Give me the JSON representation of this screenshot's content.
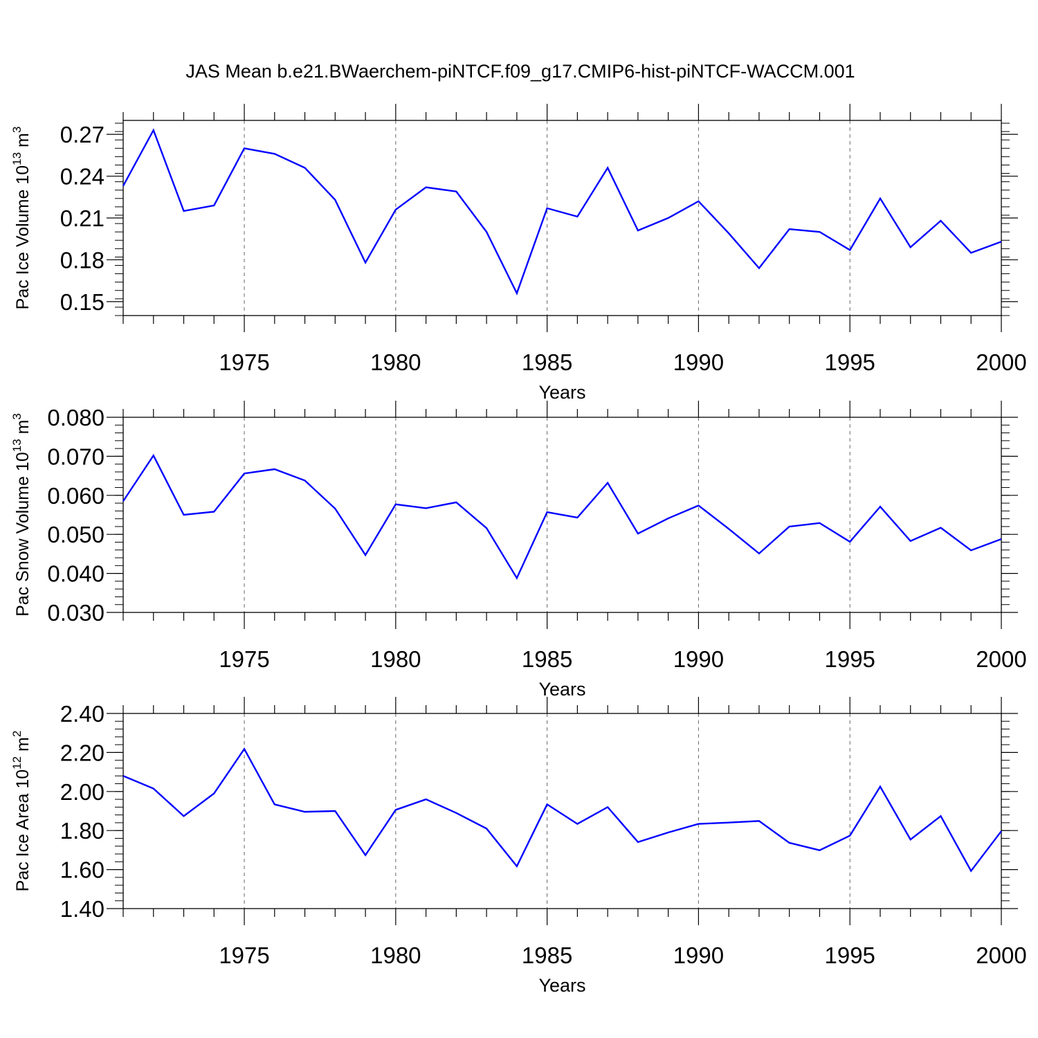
{
  "figure": {
    "title": "JAS Mean b.e21.BWaerchem-piNTCF.f09_g17.CMIP6-hist-piNTCF-WACCM.001"
  },
  "colors": {
    "line": "#0000ff",
    "axes": "#000000",
    "grid": "#666666"
  },
  "chart_data": [
    {
      "type": "line",
      "title": "",
      "xlabel": "Years",
      "ylabel": {
        "text": "Pac Ice Volume 10",
        "exp": "13",
        "unit": " m",
        "unit_exp": "3"
      },
      "xlim": [
        1971,
        2000
      ],
      "ylim": [
        0.14,
        0.28
      ],
      "xticks": [
        1975,
        1980,
        1985,
        1990,
        1995,
        2000
      ],
      "xtick_labels": [
        "1975",
        "1980",
        "1985",
        "1990",
        "1995",
        "2000"
      ],
      "yticks": [
        0.15,
        0.18,
        0.21,
        0.24,
        0.27
      ],
      "ytick_labels": [
        "0.15",
        "0.18",
        "0.21",
        "0.24",
        "0.27"
      ],
      "y_minor_step": 0.006,
      "grid": "dashed vertical lines at major x ticks",
      "x": [
        1971,
        1972,
        1973,
        1974,
        1975,
        1976,
        1977,
        1978,
        1979,
        1980,
        1981,
        1982,
        1983,
        1984,
        1985,
        1986,
        1987,
        1988,
        1989,
        1990,
        1991,
        1992,
        1993,
        1994,
        1995,
        1996,
        1997,
        1998,
        1999,
        2000
      ],
      "series": [
        {
          "values": [
            0.233,
            0.273,
            0.215,
            0.219,
            0.26,
            0.256,
            0.246,
            0.223,
            0.178,
            0.216,
            0.232,
            0.229,
            0.2,
            0.156,
            0.217,
            0.211,
            0.246,
            0.201,
            0.21,
            0.222,
            0.199,
            0.174,
            0.202,
            0.2,
            0.187,
            0.224,
            0.189,
            0.208,
            0.185,
            0.193
          ]
        }
      ]
    },
    {
      "type": "line",
      "title": "",
      "xlabel": "Years",
      "ylabel": {
        "text": "Pac Snow Volume 10",
        "exp": "13",
        "unit": " m",
        "unit_exp": "3"
      },
      "xlim": [
        1971,
        2000
      ],
      "ylim": [
        0.03,
        0.08
      ],
      "xticks": [
        1975,
        1980,
        1985,
        1990,
        1995,
        2000
      ],
      "xtick_labels": [
        "1975",
        "1980",
        "1985",
        "1990",
        "1995",
        "2000"
      ],
      "yticks": [
        0.03,
        0.04,
        0.05,
        0.06,
        0.07,
        0.08
      ],
      "ytick_labels": [
        "0.030",
        "0.040",
        "0.050",
        "0.060",
        "0.070",
        "0.080"
      ],
      "y_minor_step": 0.002,
      "grid": "dashed vertical lines at major x ticks",
      "x": [
        1971,
        1972,
        1973,
        1974,
        1975,
        1976,
        1977,
        1978,
        1979,
        1980,
        1981,
        1982,
        1983,
        1984,
        1985,
        1986,
        1987,
        1988,
        1989,
        1990,
        1991,
        1992,
        1993,
        1994,
        1995,
        1996,
        1997,
        1998,
        1999,
        2000
      ],
      "series": [
        {
          "values": [
            0.0585,
            0.0702,
            0.055,
            0.0558,
            0.0656,
            0.0667,
            0.0638,
            0.0566,
            0.0447,
            0.0577,
            0.0567,
            0.0582,
            0.0516,
            0.0388,
            0.0557,
            0.0543,
            0.0632,
            0.0502,
            0.0541,
            0.0574,
            0.0514,
            0.0451,
            0.052,
            0.0529,
            0.0481,
            0.0571,
            0.0483,
            0.0517,
            0.0459,
            0.0488
          ]
        }
      ]
    },
    {
      "type": "line",
      "title": "",
      "xlabel": "Years",
      "ylabel": {
        "text": "Pac Ice Area 10",
        "exp": "12",
        "unit": " m",
        "unit_exp": "2"
      },
      "xlim": [
        1971,
        2000
      ],
      "ylim": [
        1.4,
        2.4
      ],
      "xticks": [
        1975,
        1980,
        1985,
        1990,
        1995,
        2000
      ],
      "xtick_labels": [
        "1975",
        "1980",
        "1985",
        "1990",
        "1995",
        "2000"
      ],
      "yticks": [
        1.4,
        1.6,
        1.8,
        2.0,
        2.2,
        2.4
      ],
      "ytick_labels": [
        "1.40",
        "1.60",
        "1.80",
        "2.00",
        "2.20",
        "2.40"
      ],
      "y_minor_step": 0.04,
      "grid": "dashed vertical lines at major x ticks",
      "x": [
        1971,
        1972,
        1973,
        1974,
        1975,
        1976,
        1977,
        1978,
        1979,
        1980,
        1981,
        1982,
        1983,
        1984,
        1985,
        1986,
        1987,
        1988,
        1989,
        1990,
        1991,
        1992,
        1993,
        1994,
        1995,
        1996,
        1997,
        1998,
        1999,
        2000
      ],
      "series": [
        {
          "values": [
            2.08,
            2.015,
            1.874,
            1.99,
            2.218,
            1.934,
            1.896,
            1.9,
            1.674,
            1.906,
            1.96,
            1.89,
            1.81,
            1.617,
            1.934,
            1.834,
            1.92,
            1.741,
            1.79,
            1.834,
            1.841,
            1.849,
            1.737,
            1.699,
            1.774,
            2.025,
            1.754,
            1.874,
            1.593,
            1.797
          ]
        }
      ]
    }
  ]
}
